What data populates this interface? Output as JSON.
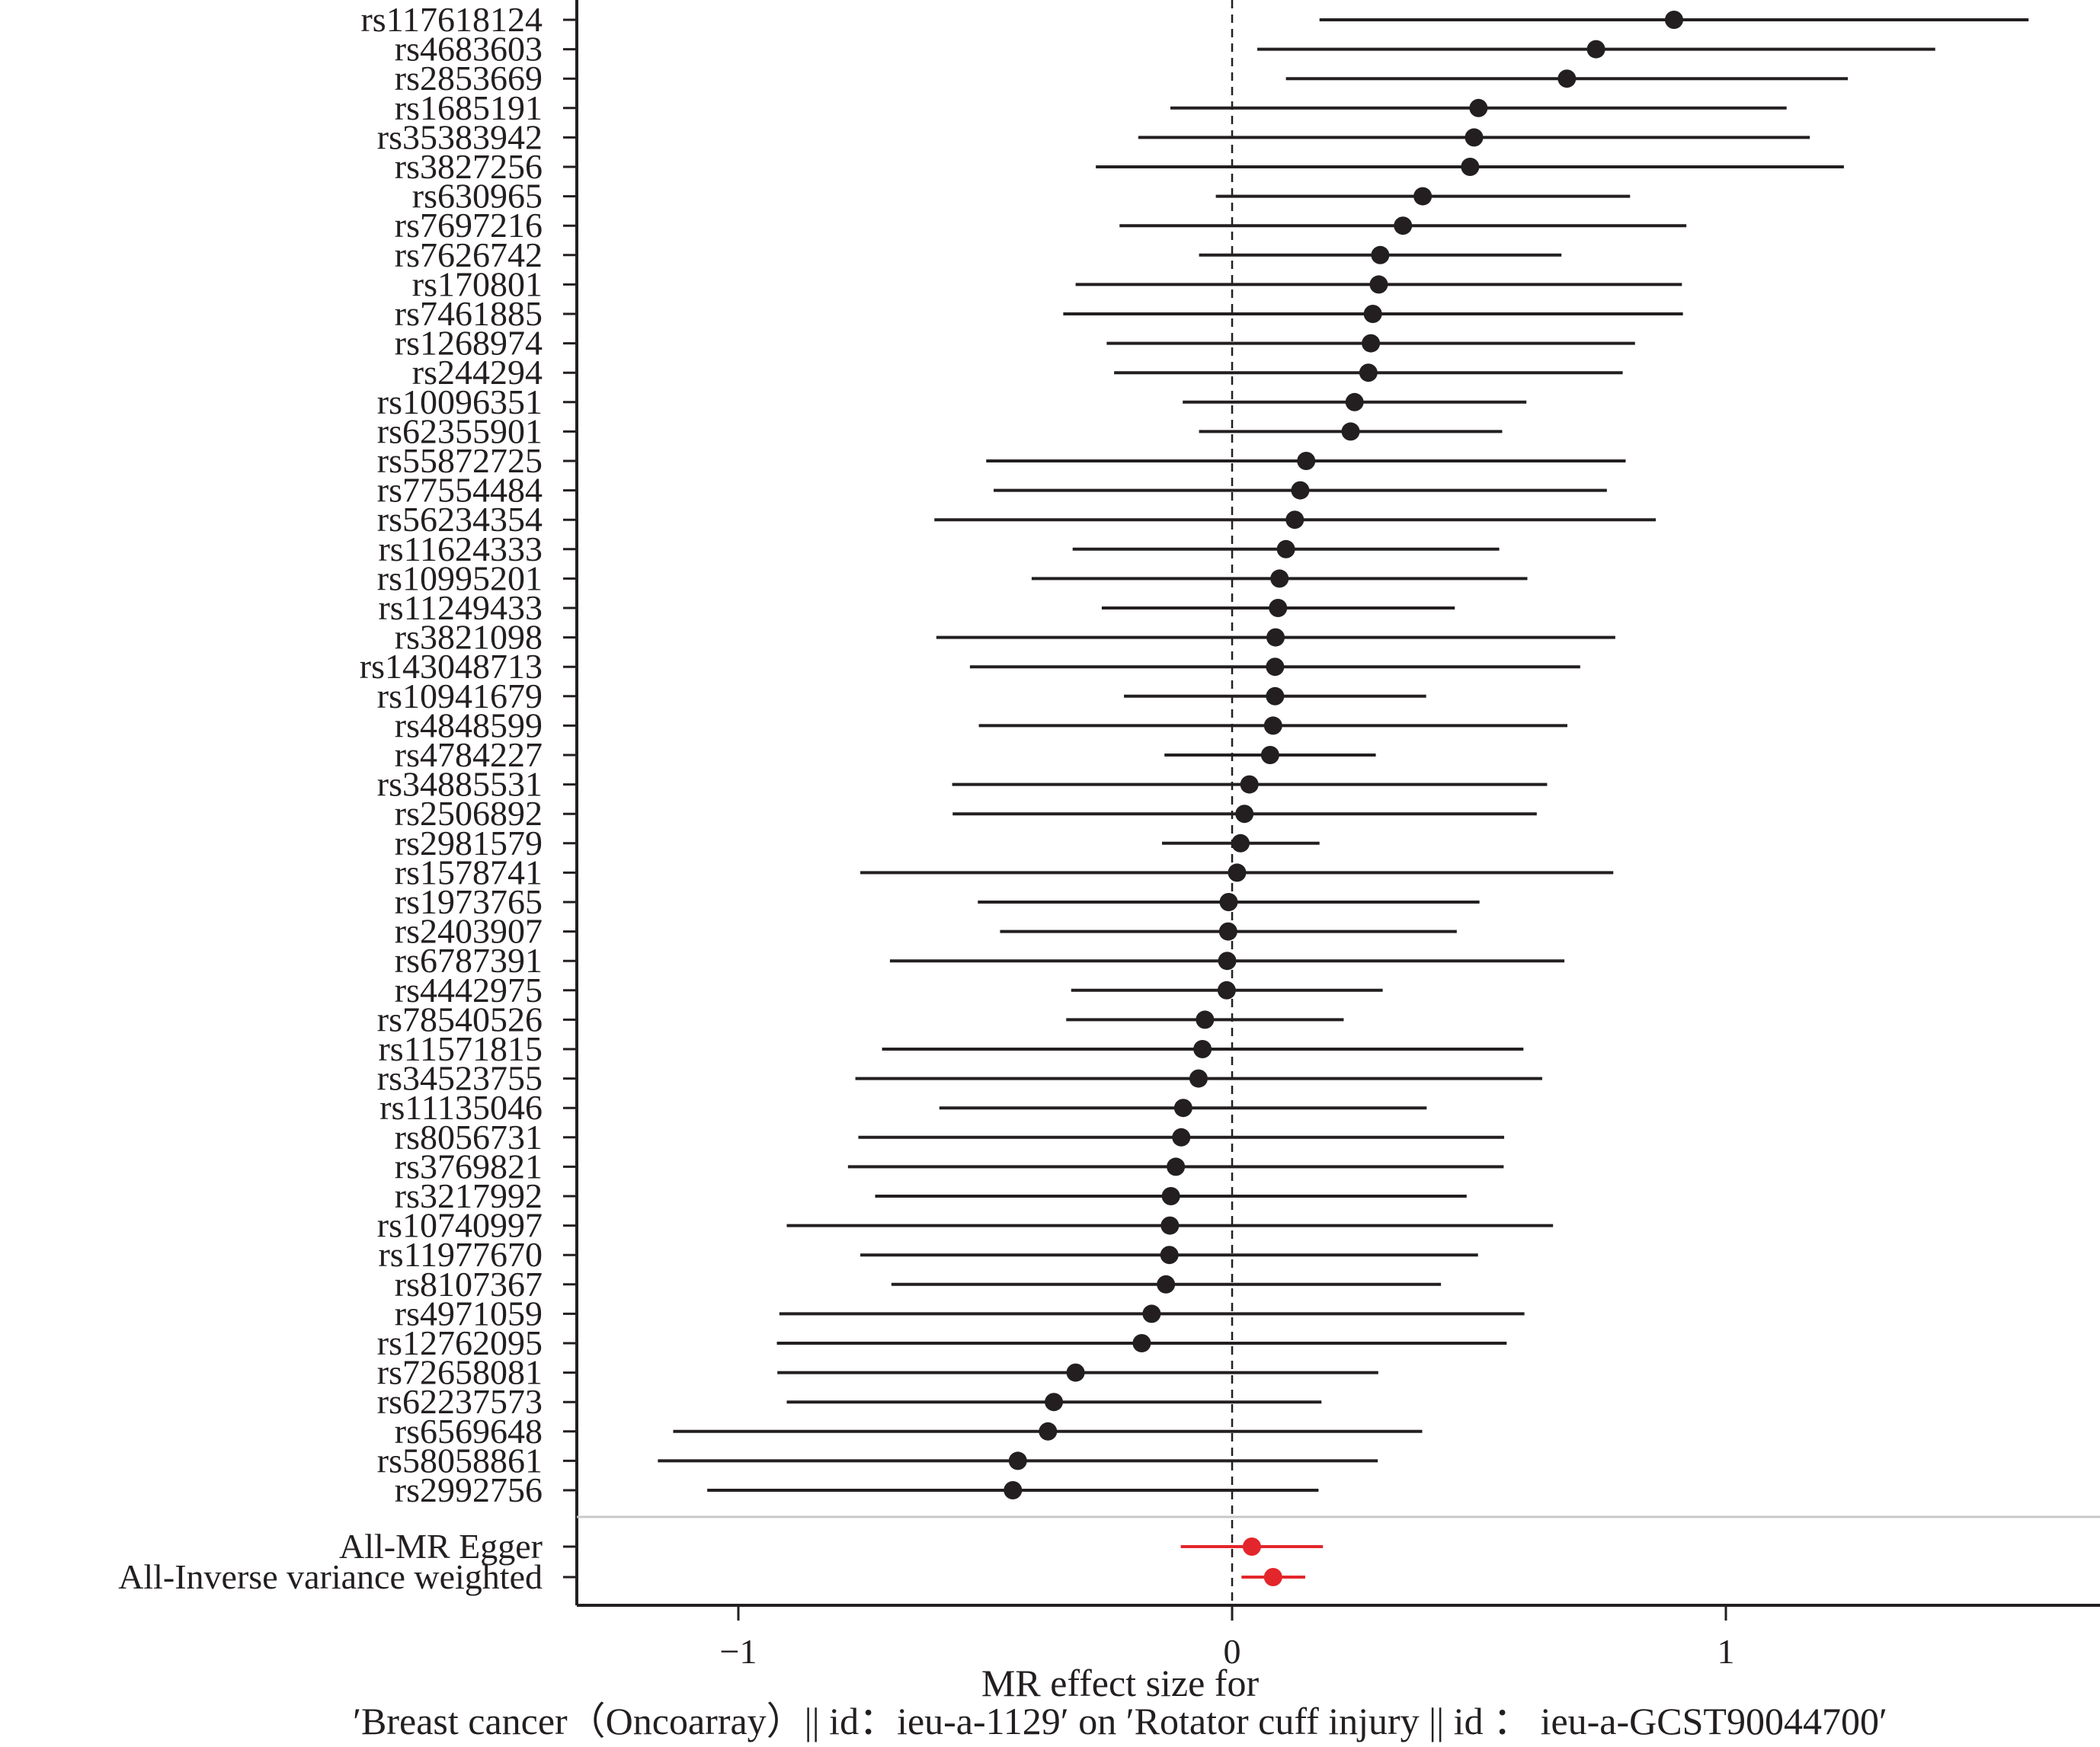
{
  "chart_data": {
    "type": "forest",
    "xlabel_line1": "MR effect size for",
    "xlabel_line2": "′Breast cancer（Oncoarray）|| id：ieu-a-1129′ on ′Rotator cuff injury || id ： ieu-a-GCST90044700′",
    "xlim": [
      -1.32,
      1.76
    ],
    "x_ticks": [
      -1,
      0,
      1
    ],
    "x_tick_labels": [
      "−1",
      "0",
      "1"
    ],
    "reference_line": 0,
    "snps": [
      {
        "label": "rs117618124",
        "b": 0.895,
        "lo": 0.177,
        "hi": 1.613
      },
      {
        "label": "rs4683603",
        "b": 0.737,
        "lo": 0.051,
        "hi": 1.424
      },
      {
        "label": "rs2853669",
        "b": 0.678,
        "lo": 0.109,
        "hi": 1.247
      },
      {
        "label": "rs1685191",
        "b": 0.499,
        "lo": -0.125,
        "hi": 1.123
      },
      {
        "label": "rs35383942",
        "b": 0.49,
        "lo": -0.19,
        "hi": 1.17
      },
      {
        "label": "rs3827256",
        "b": 0.482,
        "lo": -0.276,
        "hi": 1.239
      },
      {
        "label": "rs630965",
        "b": 0.386,
        "lo": -0.033,
        "hi": 0.806
      },
      {
        "label": "rs7697216",
        "b": 0.346,
        "lo": -0.228,
        "hi": 0.92
      },
      {
        "label": "rs7626742",
        "b": 0.3,
        "lo": -0.067,
        "hi": 0.667
      },
      {
        "label": "rs170801",
        "b": 0.297,
        "lo": -0.317,
        "hi": 0.911
      },
      {
        "label": "rs7461885",
        "b": 0.285,
        "lo": -0.342,
        "hi": 0.913
      },
      {
        "label": "rs1268974",
        "b": 0.281,
        "lo": -0.254,
        "hi": 0.816
      },
      {
        "label": "rs244294",
        "b": 0.276,
        "lo": -0.239,
        "hi": 0.791
      },
      {
        "label": "rs10096351",
        "b": 0.248,
        "lo": -0.1,
        "hi": 0.596
      },
      {
        "label": "rs62355901",
        "b": 0.24,
        "lo": -0.067,
        "hi": 0.547
      },
      {
        "label": "rs55872725",
        "b": 0.15,
        "lo": -0.498,
        "hi": 0.797
      },
      {
        "label": "rs77554484",
        "b": 0.138,
        "lo": -0.483,
        "hi": 0.759
      },
      {
        "label": "rs56234354",
        "b": 0.127,
        "lo": -0.603,
        "hi": 0.858
      },
      {
        "label": "rs11624333",
        "b": 0.109,
        "lo": -0.323,
        "hi": 0.541
      },
      {
        "label": "rs10995201",
        "b": 0.096,
        "lo": -0.406,
        "hi": 0.598
      },
      {
        "label": "rs11249433",
        "b": 0.093,
        "lo": -0.264,
        "hi": 0.451
      },
      {
        "label": "rs3821098",
        "b": 0.088,
        "lo": -0.599,
        "hi": 0.776
      },
      {
        "label": "rs143048713",
        "b": 0.087,
        "lo": -0.531,
        "hi": 0.705
      },
      {
        "label": "rs10941679",
        "b": 0.087,
        "lo": -0.219,
        "hi": 0.393
      },
      {
        "label": "rs4848599",
        "b": 0.083,
        "lo": -0.513,
        "hi": 0.679
      },
      {
        "label": "rs4784227",
        "b": 0.077,
        "lo": -0.137,
        "hi": 0.291
      },
      {
        "label": "rs34885531",
        "b": 0.035,
        "lo": -0.567,
        "hi": 0.638
      },
      {
        "label": "rs2506892",
        "b": 0.025,
        "lo": -0.566,
        "hi": 0.617
      },
      {
        "label": "rs2981579",
        "b": 0.017,
        "lo": -0.142,
        "hi": 0.177
      },
      {
        "label": "rs1578741",
        "b": 0.01,
        "lo": -0.753,
        "hi": 0.772
      },
      {
        "label": "rs1973765",
        "b": -0.007,
        "lo": -0.515,
        "hi": 0.501
      },
      {
        "label": "rs2403907",
        "b": -0.008,
        "lo": -0.47,
        "hi": 0.455
      },
      {
        "label": "rs6787391",
        "b": -0.01,
        "lo": -0.693,
        "hi": 0.673
      },
      {
        "label": "rs4442975",
        "b": -0.011,
        "lo": -0.326,
        "hi": 0.305
      },
      {
        "label": "rs78540526",
        "b": -0.055,
        "lo": -0.336,
        "hi": 0.226
      },
      {
        "label": "rs11571815",
        "b": -0.06,
        "lo": -0.709,
        "hi": 0.59
      },
      {
        "label": "rs34523755",
        "b": -0.068,
        "lo": -0.763,
        "hi": 0.628
      },
      {
        "label": "rs11135046",
        "b": -0.099,
        "lo": -0.593,
        "hi": 0.394
      },
      {
        "label": "rs8056731",
        "b": -0.103,
        "lo": -0.757,
        "hi": 0.551
      },
      {
        "label": "rs3769821",
        "b": -0.114,
        "lo": -0.778,
        "hi": 0.55
      },
      {
        "label": "rs3217992",
        "b": -0.124,
        "lo": -0.723,
        "hi": 0.475
      },
      {
        "label": "rs10740997",
        "b": -0.126,
        "lo": -0.902,
        "hi": 0.65
      },
      {
        "label": "rs11977670",
        "b": -0.127,
        "lo": -0.753,
        "hi": 0.498
      },
      {
        "label": "rs8107367",
        "b": -0.134,
        "lo": -0.69,
        "hi": 0.423
      },
      {
        "label": "rs4971059",
        "b": -0.163,
        "lo": -0.917,
        "hi": 0.592
      },
      {
        "label": "rs12762095",
        "b": -0.183,
        "lo": -0.922,
        "hi": 0.556
      },
      {
        "label": "rs72658081",
        "b": -0.317,
        "lo": -0.921,
        "hi": 0.296
      },
      {
        "label": "rs62237573",
        "b": -0.361,
        "lo": -0.902,
        "hi": 0.181
      },
      {
        "label": "rs6569648",
        "b": -0.373,
        "lo": -1.132,
        "hi": 0.385
      },
      {
        "label": "rs58058861",
        "b": -0.434,
        "lo": -1.163,
        "hi": 0.295
      },
      {
        "label": "rs2992756",
        "b": -0.444,
        "lo": -1.063,
        "hi": 0.175
      }
    ],
    "summary": [
      {
        "label": "All-MR Egger",
        "b": 0.04,
        "lo": -0.104,
        "hi": 0.184
      },
      {
        "label": "All-Inverse variance weighted",
        "b": 0.083,
        "lo": 0.019,
        "hi": 0.148
      }
    ],
    "colors": {
      "snp": "#231f20",
      "summary": "#e3262b",
      "axis": "#231f20",
      "separator": "#c8c8c8"
    }
  }
}
